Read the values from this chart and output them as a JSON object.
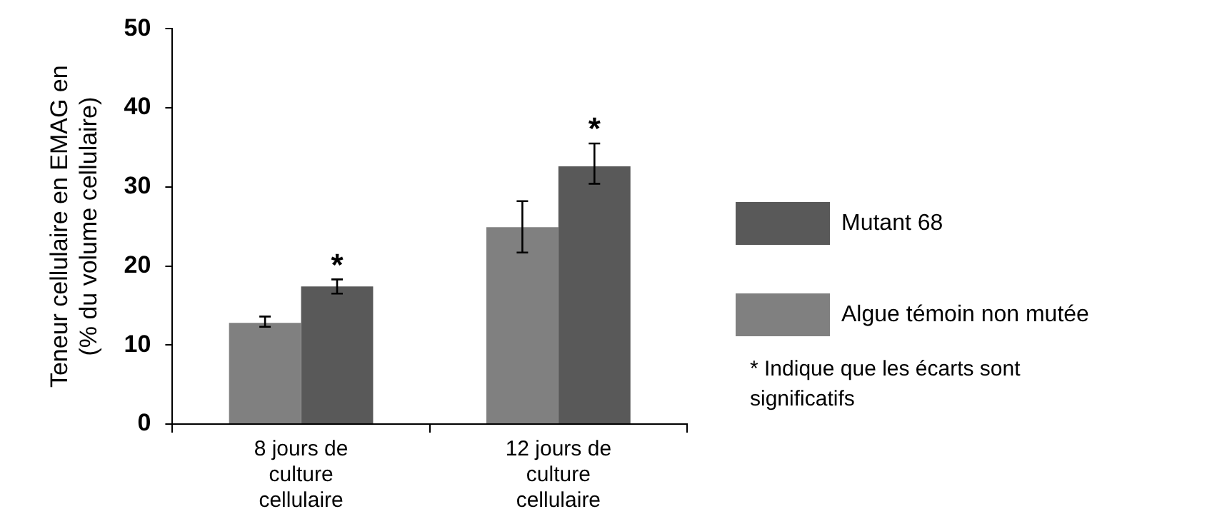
{
  "chart_data": {
    "type": "bar",
    "ylabel": "Teneur cellulaire en EMAG en (% du volume cellulaire)",
    "categories": [
      "8 jours de culture cellulaire",
      "12 jours de culture cellulaire"
    ],
    "series": [
      {
        "name": "Algue témoin non mutée",
        "color": "#808080",
        "values": [
          12.8,
          24.9
        ],
        "errors": [
          [
            12.3,
            13.6
          ],
          [
            21.7,
            28.2
          ]
        ]
      },
      {
        "name": "Mutant 68",
        "color": "#595959",
        "values": [
          17.4,
          32.6
        ],
        "errors": [
          [
            16.5,
            18.3
          ],
          [
            30.4,
            35.5
          ]
        ]
      }
    ],
    "ylim": [
      0,
      50
    ],
    "yticks": [
      0,
      10,
      20,
      30,
      40,
      50
    ],
    "grid": false,
    "legend": "right",
    "annotations": [
      {
        "text": "*",
        "x": "8 jours de culture cellulaire",
        "y": 17.4
      },
      {
        "text": "*",
        "x": "12 jours de culture cellulaire",
        "y": 32.6
      },
      "* Indique que les écarts sont significatifs"
    ]
  }
}
